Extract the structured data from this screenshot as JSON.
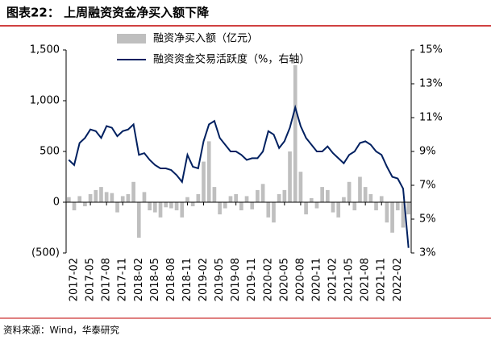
{
  "chart_data": {
    "type": "bar",
    "title": "图表22：  上周融资资金净买入额下降",
    "source": "资料来源：Wind，华泰研究",
    "categories": [
      null,
      "2017-02",
      null,
      null,
      "2017-05",
      null,
      null,
      "2017-08",
      null,
      null,
      "2017-11",
      null,
      null,
      "2018-02",
      null,
      null,
      "2018-05",
      null,
      null,
      "2018-08",
      null,
      null,
      "2018-11",
      null,
      null,
      "2019-02",
      null,
      null,
      "2019-05",
      null,
      null,
      "2019-08",
      null,
      null,
      "2019-11",
      null,
      null,
      "2020-02",
      null,
      null,
      "2020-05",
      null,
      null,
      "2020-08",
      null,
      null,
      "2020-11",
      null,
      null,
      "2021-02",
      null,
      null,
      "2021-05",
      null,
      null,
      "2021-08",
      null,
      null,
      "2021-11",
      null,
      null,
      "2022-02",
      null,
      null
    ],
    "series": [
      {
        "name": "融资净买入额（亿元）",
        "type": "bar",
        "color": "#bfbfbf",
        "values": [
          50,
          -80,
          60,
          -40,
          80,
          120,
          150,
          100,
          90,
          -100,
          60,
          80,
          200,
          -350,
          100,
          -80,
          -100,
          -150,
          -50,
          -60,
          -80,
          -150,
          50,
          -40,
          80,
          400,
          600,
          150,
          -120,
          -60,
          60,
          80,
          -80,
          60,
          -70,
          120,
          180,
          -150,
          -200,
          80,
          120,
          500,
          1350,
          300,
          -120,
          40,
          -60,
          150,
          120,
          -100,
          -150,
          50,
          200,
          -80,
          250,
          150,
          80,
          -80,
          60,
          -200,
          -300,
          -80,
          -250,
          -120
        ]
      },
      {
        "name": "融资资金交易活跃度（%，右轴）",
        "type": "line",
        "axis": "y2",
        "color": "#002060",
        "values": [
          8.5,
          8.2,
          9.5,
          9.8,
          10.3,
          10.2,
          9.8,
          10.5,
          10.4,
          9.9,
          10.2,
          10.3,
          10.6,
          8.8,
          8.9,
          8.5,
          8.2,
          8.0,
          8.0,
          7.9,
          7.6,
          7.2,
          8.8,
          8.1,
          8.0,
          9.6,
          10.6,
          10.8,
          9.8,
          9.4,
          9.0,
          9.0,
          8.8,
          8.5,
          8.6,
          8.6,
          9.0,
          10.2,
          10.0,
          9.2,
          9.6,
          10.4,
          11.6,
          10.5,
          9.8,
          9.4,
          9.0,
          9.0,
          9.3,
          8.9,
          8.6,
          8.3,
          8.8,
          9.0,
          9.5,
          9.6,
          9.4,
          9.0,
          8.8,
          8.1,
          7.5,
          7.4,
          6.8,
          3.3
        ]
      }
    ],
    "ylim": [
      -500,
      1500
    ],
    "yticks": [
      {
        "value": -500,
        "label": "(500)"
      },
      0,
      500,
      {
        "value": 1000,
        "label": "1,000"
      },
      {
        "value": 1500,
        "label": "1,500"
      }
    ],
    "y2lim": [
      3,
      15
    ],
    "y2ticks": [
      {
        "value": 3,
        "label": "3%"
      },
      {
        "value": 5,
        "label": "5%"
      },
      {
        "value": 7,
        "label": "7%"
      },
      {
        "value": 9,
        "label": "9%"
      },
      {
        "value": 11,
        "label": "11%"
      },
      {
        "value": 13,
        "label": "13%"
      },
      {
        "value": 15,
        "label": "15%"
      }
    ],
    "grid": false
  }
}
